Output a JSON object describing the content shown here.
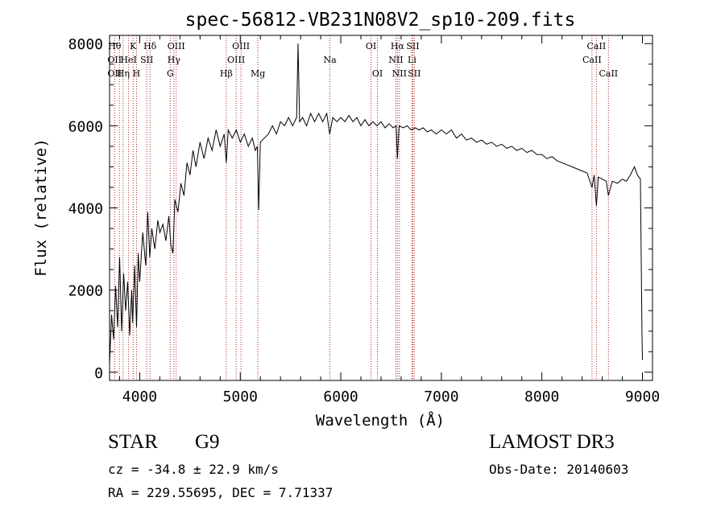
{
  "chart_data": {
    "type": "line",
    "title": "spec-56812-VB231N08V2_sp10-209.fits",
    "xlabel": "Wavelength (Å)",
    "ylabel": "Flux (relative)",
    "xlim": [
      3700,
      9100
    ],
    "ylim": [
      -200,
      8200
    ],
    "xticks": [
      4000,
      5000,
      6000,
      7000,
      8000,
      9000
    ],
    "yticks": [
      0,
      2000,
      4000,
      6000,
      8000
    ],
    "series": [
      {
        "name": "Flux",
        "points": [
          [
            3700,
            200
          ],
          [
            3720,
            1400
          ],
          [
            3740,
            800
          ],
          [
            3760,
            2100
          ],
          [
            3780,
            1100
          ],
          [
            3800,
            2800
          ],
          [
            3820,
            1000
          ],
          [
            3840,
            2400
          ],
          [
            3860,
            1500
          ],
          [
            3880,
            2200
          ],
          [
            3900,
            900
          ],
          [
            3920,
            2000
          ],
          [
            3930,
            1200
          ],
          [
            3950,
            2600
          ],
          [
            3968,
            1100
          ],
          [
            3985,
            2900
          ],
          [
            4000,
            2200
          ],
          [
            4030,
            3400
          ],
          [
            4060,
            2600
          ],
          [
            4080,
            3900
          ],
          [
            4100,
            2800
          ],
          [
            4120,
            3500
          ],
          [
            4150,
            3000
          ],
          [
            4180,
            3700
          ],
          [
            4200,
            3400
          ],
          [
            4230,
            3600
          ],
          [
            4260,
            3200
          ],
          [
            4290,
            3800
          ],
          [
            4310,
            3100
          ],
          [
            4330,
            2900
          ],
          [
            4350,
            4200
          ],
          [
            4380,
            3900
          ],
          [
            4410,
            4600
          ],
          [
            4440,
            4300
          ],
          [
            4470,
            5100
          ],
          [
            4500,
            4800
          ],
          [
            4530,
            5400
          ],
          [
            4560,
            5000
          ],
          [
            4600,
            5600
          ],
          [
            4640,
            5200
          ],
          [
            4680,
            5700
          ],
          [
            4720,
            5400
          ],
          [
            4760,
            5900
          ],
          [
            4800,
            5500
          ],
          [
            4840,
            5800
          ],
          [
            4861,
            5100
          ],
          [
            4880,
            5900
          ],
          [
            4920,
            5700
          ],
          [
            4960,
            5900
          ],
          [
            5000,
            5600
          ],
          [
            5040,
            5800
          ],
          [
            5080,
            5500
          ],
          [
            5120,
            5700
          ],
          [
            5150,
            5400
          ],
          [
            5170,
            5500
          ],
          [
            5183,
            3950
          ],
          [
            5200,
            5600
          ],
          [
            5240,
            5700
          ],
          [
            5280,
            5800
          ],
          [
            5320,
            6000
          ],
          [
            5360,
            5800
          ],
          [
            5400,
            6100
          ],
          [
            5440,
            6000
          ],
          [
            5480,
            6200
          ],
          [
            5520,
            6000
          ],
          [
            5560,
            6200
          ],
          [
            5575,
            8000
          ],
          [
            5590,
            6100
          ],
          [
            5620,
            6200
          ],
          [
            5660,
            6000
          ],
          [
            5700,
            6300
          ],
          [
            5740,
            6100
          ],
          [
            5780,
            6300
          ],
          [
            5820,
            6100
          ],
          [
            5860,
            6300
          ],
          [
            5890,
            5800
          ],
          [
            5920,
            6200
          ],
          [
            5960,
            6100
          ],
          [
            6000,
            6200
          ],
          [
            6040,
            6100
          ],
          [
            6080,
            6250
          ],
          [
            6120,
            6100
          ],
          [
            6160,
            6200
          ],
          [
            6200,
            6000
          ],
          [
            6240,
            6150
          ],
          [
            6280,
            6000
          ],
          [
            6320,
            6100
          ],
          [
            6360,
            6000
          ],
          [
            6400,
            6100
          ],
          [
            6440,
            5950
          ],
          [
            6480,
            6050
          ],
          [
            6520,
            5950
          ],
          [
            6550,
            6000
          ],
          [
            6563,
            5200
          ],
          [
            6580,
            6000
          ],
          [
            6620,
            5950
          ],
          [
            6660,
            6000
          ],
          [
            6700,
            5900
          ],
          [
            6740,
            5950
          ],
          [
            6780,
            5900
          ],
          [
            6820,
            5950
          ],
          [
            6860,
            5850
          ],
          [
            6900,
            5900
          ],
          [
            6950,
            5800
          ],
          [
            7000,
            5900
          ],
          [
            7050,
            5800
          ],
          [
            7100,
            5900
          ],
          [
            7150,
            5700
          ],
          [
            7200,
            5800
          ],
          [
            7250,
            5650
          ],
          [
            7300,
            5700
          ],
          [
            7350,
            5600
          ],
          [
            7400,
            5650
          ],
          [
            7450,
            5550
          ],
          [
            7500,
            5600
          ],
          [
            7550,
            5500
          ],
          [
            7600,
            5550
          ],
          [
            7650,
            5450
          ],
          [
            7700,
            5500
          ],
          [
            7750,
            5400
          ],
          [
            7800,
            5450
          ],
          [
            7850,
            5350
          ],
          [
            7900,
            5400
          ],
          [
            7950,
            5300
          ],
          [
            8000,
            5300
          ],
          [
            8050,
            5200
          ],
          [
            8100,
            5250
          ],
          [
            8150,
            5150
          ],
          [
            8200,
            5100
          ],
          [
            8250,
            5050
          ],
          [
            8300,
            5000
          ],
          [
            8350,
            4950
          ],
          [
            8400,
            4900
          ],
          [
            8450,
            4850
          ],
          [
            8498,
            4500
          ],
          [
            8520,
            4800
          ],
          [
            8542,
            4050
          ],
          [
            8560,
            4750
          ],
          [
            8600,
            4700
          ],
          [
            8640,
            4650
          ],
          [
            8662,
            4300
          ],
          [
            8700,
            4650
          ],
          [
            8750,
            4600
          ],
          [
            8800,
            4700
          ],
          [
            8840,
            4650
          ],
          [
            8880,
            4800
          ],
          [
            8920,
            5000
          ],
          [
            8950,
            4800
          ],
          [
            8980,
            4700
          ],
          [
            8995,
            1000
          ],
          [
            9000,
            300
          ]
        ]
      }
    ],
    "lines": [
      {
        "w": 3750,
        "labels": [
          {
            "t": "Hθ",
            "r": 0
          },
          {
            "t": "OII",
            "r": 1
          },
          {
            "t": "OII",
            "r": 2
          }
        ]
      },
      {
        "w": 3797,
        "labels": []
      },
      {
        "w": 3835,
        "labels": [
          {
            "t": "Hη",
            "r": 2
          }
        ]
      },
      {
        "w": 3889,
        "labels": [
          {
            "t": "HeI",
            "r": 1
          }
        ]
      },
      {
        "w": 3934,
        "labels": [
          {
            "t": "K",
            "r": 0
          }
        ]
      },
      {
        "w": 3968,
        "labels": [
          {
            "t": "H",
            "r": 2
          }
        ]
      },
      {
        "w": 4070,
        "labels": [
          {
            "t": "SII",
            "r": 1
          }
        ]
      },
      {
        "w": 4102,
        "labels": [
          {
            "t": "Hδ",
            "r": 0
          }
        ]
      },
      {
        "w": 4304,
        "labels": [
          {
            "t": "G",
            "r": 2
          }
        ]
      },
      {
        "w": 4340,
        "labels": [
          {
            "t": "Hγ",
            "r": 1
          }
        ]
      },
      {
        "w": 4363,
        "labels": [
          {
            "t": "OIII",
            "r": 0
          }
        ]
      },
      {
        "w": 4861,
        "labels": [
          {
            "t": "Hβ",
            "r": 2
          }
        ]
      },
      {
        "w": 4959,
        "labels": [
          {
            "t": "OIII",
            "r": 1
          }
        ]
      },
      {
        "w": 5007,
        "labels": [
          {
            "t": "OIII",
            "r": 0
          }
        ]
      },
      {
        "w": 5175,
        "labels": [
          {
            "t": "Mg",
            "r": 2
          }
        ]
      },
      {
        "w": 5892,
        "labels": [
          {
            "t": "Na",
            "r": 1
          }
        ]
      },
      {
        "w": 6300,
        "labels": [
          {
            "t": "OI",
            "r": 0
          }
        ]
      },
      {
        "w": 6364,
        "labels": [
          {
            "t": "OI",
            "r": 2
          }
        ]
      },
      {
        "w": 6548,
        "labels": [
          {
            "t": "NII",
            "r": 1
          }
        ]
      },
      {
        "w": 6563,
        "labels": [
          {
            "t": "Hα",
            "r": 0
          }
        ]
      },
      {
        "w": 6583,
        "labels": [
          {
            "t": "NII",
            "r": 2
          }
        ]
      },
      {
        "w": 6708,
        "labels": [
          {
            "t": "Li",
            "r": 1
          }
        ]
      },
      {
        "w": 6716,
        "labels": [
          {
            "t": "SII",
            "r": 0
          }
        ]
      },
      {
        "w": 6731,
        "labels": [
          {
            "t": "SII",
            "r": 2
          }
        ]
      },
      {
        "w": 8498,
        "labels": [
          {
            "t": "CaII",
            "r": 1
          }
        ]
      },
      {
        "w": 8542,
        "labels": [
          {
            "t": "CaII",
            "r": 0
          }
        ]
      },
      {
        "w": 8662,
        "labels": [
          {
            "t": "CaII",
            "r": 2
          }
        ]
      }
    ]
  },
  "info": {
    "class": "STAR",
    "subclass": "G9",
    "survey": "LAMOST DR3",
    "cz": "cz = -34.8 ± 22.9 km/s",
    "obs_date": "Obs-Date: 20140603",
    "radec": "RA = 229.55695, DEC =   7.71337"
  },
  "colors": {
    "line_marker": "#b22222",
    "spectrum": "#000000"
  }
}
